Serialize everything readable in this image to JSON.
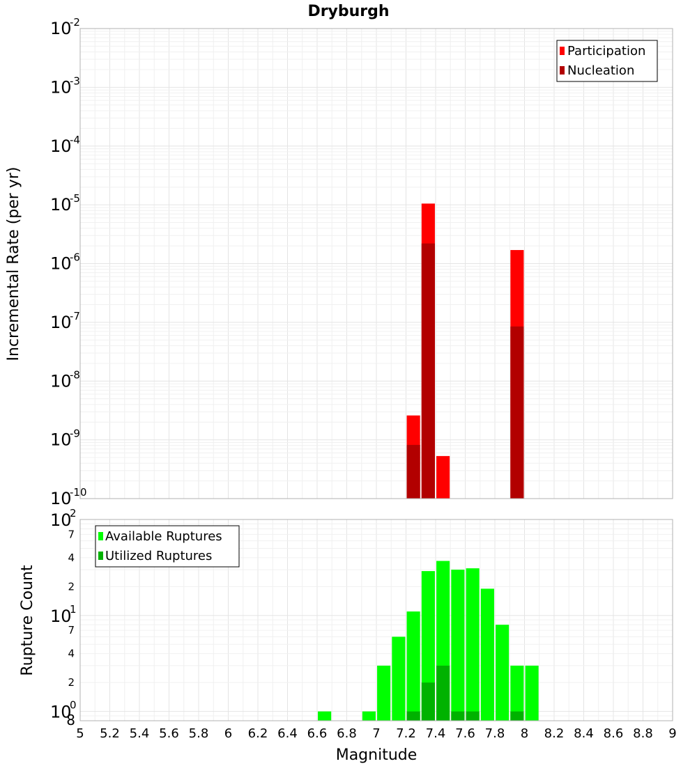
{
  "chart_data": [
    {
      "type": "bar",
      "title": "Dryburgh",
      "xlabel": "",
      "ylabel": "Incremental Rate (per yr)",
      "yscale": "log",
      "xlim": [
        5,
        9
      ],
      "ylim": [
        1e-10,
        0.01
      ],
      "y_tick_labels": [
        {
          "base": "10",
          "exp": "-10"
        },
        {
          "base": "10",
          "exp": "-9"
        },
        {
          "base": "10",
          "exp": "-8"
        },
        {
          "base": "10",
          "exp": "-7"
        },
        {
          "base": "10",
          "exp": "-6"
        },
        {
          "base": "10",
          "exp": "-5"
        },
        {
          "base": "10",
          "exp": "-4"
        },
        {
          "base": "10",
          "exp": "-3"
        },
        {
          "base": "10",
          "exp": "-2"
        }
      ],
      "grid": true,
      "legend_position": "top-right",
      "bar_width": 0.09,
      "series": [
        {
          "name": "Participation",
          "color": "#ff0000",
          "points": [
            {
              "x": 7.25,
              "y": 2.6e-09
            },
            {
              "x": 7.35,
              "y": 1.05e-05
            },
            {
              "x": 7.45,
              "y": 5.3e-10
            },
            {
              "x": 7.95,
              "y": 1.7e-06
            }
          ]
        },
        {
          "name": "Nucleation",
          "color": "#b20000",
          "points": [
            {
              "x": 7.25,
              "y": 8.2e-10
            },
            {
              "x": 7.35,
              "y": 2.2e-06
            },
            {
              "x": 7.95,
              "y": 8.5e-08
            }
          ]
        }
      ]
    },
    {
      "type": "bar",
      "title": "",
      "xlabel": "Magnitude",
      "ylabel": "Rupture Count",
      "yscale": "log",
      "xlim": [
        5,
        9
      ],
      "ylim": [
        0.8,
        100
      ],
      "x_tick_labels": [
        "5",
        "5.2",
        "5.4",
        "5.6",
        "5.8",
        "6",
        "6.2",
        "6.4",
        "6.6",
        "6.8",
        "7",
        "7.2",
        "7.4",
        "7.6",
        "7.8",
        "8",
        "8.2",
        "8.4",
        "8.6",
        "8.8",
        "9"
      ],
      "y_major_tick_labels": [
        {
          "value": 100,
          "base": "10",
          "exp": "2"
        },
        {
          "value": 10,
          "base": "10",
          "exp": "1"
        },
        {
          "value": 1,
          "base": "10",
          "exp": "0"
        }
      ],
      "y_minor_tick_labels": [
        {
          "value": 70,
          "label": "7"
        },
        {
          "value": 40,
          "label": "4"
        },
        {
          "value": 20,
          "label": "2"
        },
        {
          "value": 7,
          "label": "7"
        },
        {
          "value": 4,
          "label": "4"
        },
        {
          "value": 2,
          "label": "2"
        },
        {
          "value": 0.8,
          "label": "8"
        }
      ],
      "grid": true,
      "legend_position": "top-left",
      "bar_width": 0.09,
      "series": [
        {
          "name": "Available Ruptures",
          "color": "#00ff00",
          "points": [
            {
              "x": 6.65,
              "y": 1
            },
            {
              "x": 6.95,
              "y": 1
            },
            {
              "x": 7.05,
              "y": 3
            },
            {
              "x": 7.15,
              "y": 6
            },
            {
              "x": 7.25,
              "y": 11
            },
            {
              "x": 7.35,
              "y": 29
            },
            {
              "x": 7.45,
              "y": 37
            },
            {
              "x": 7.55,
              "y": 30
            },
            {
              "x": 7.65,
              "y": 31
            },
            {
              "x": 7.75,
              "y": 19
            },
            {
              "x": 7.85,
              "y": 8
            },
            {
              "x": 7.95,
              "y": 3
            },
            {
              "x": 8.05,
              "y": 3
            }
          ]
        },
        {
          "name": "Utilized Ruptures",
          "color": "#00b200",
          "points": [
            {
              "x": 7.25,
              "y": 1
            },
            {
              "x": 7.35,
              "y": 2
            },
            {
              "x": 7.45,
              "y": 3
            },
            {
              "x": 7.55,
              "y": 1
            },
            {
              "x": 7.65,
              "y": 1
            },
            {
              "x": 7.95,
              "y": 1
            }
          ]
        }
      ]
    }
  ]
}
